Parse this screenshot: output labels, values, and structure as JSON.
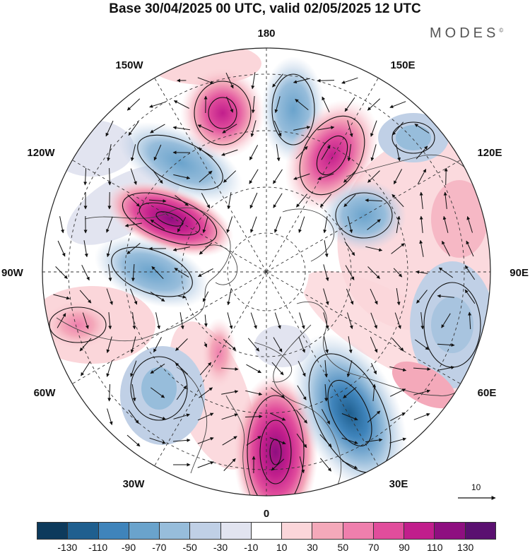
{
  "title": "Base 30/04/2025 00 UTC, valid 02/05/2025 12 UTC",
  "brand": "MODES",
  "brand_mark": "©",
  "longitude_labels": {
    "top": "180",
    "bottom": "0",
    "left": "90W",
    "right": "90E",
    "upper_left_1": "150W",
    "upper_left_2": "120W",
    "upper_right_1": "150E",
    "upper_right_2": "120E",
    "lower_left_1": "60W",
    "lower_left_2": "30W",
    "lower_right_1": "60E",
    "lower_right_2": "30E"
  },
  "reference_vector": {
    "label": "10"
  },
  "legend": {
    "colors": [
      "#0d3a5c",
      "#1f5f8f",
      "#3f84bb",
      "#6aa3cc",
      "#97bddb",
      "#c0d0e6",
      "#e2e4f0",
      "#ffffff",
      "#fbd6da",
      "#f4a9ba",
      "#ef7fad",
      "#e14d9c",
      "#c11e8c",
      "#8e0f80",
      "#5a1070"
    ],
    "labels": [
      "-130",
      "-110",
      "-90",
      "-70",
      "-50",
      "-30",
      "-10",
      "10",
      "30",
      "50",
      "70",
      "90",
      "110",
      "130"
    ]
  },
  "field_colors": {
    "positive": "#e14d9c",
    "negative": "#3f84bb"
  }
}
